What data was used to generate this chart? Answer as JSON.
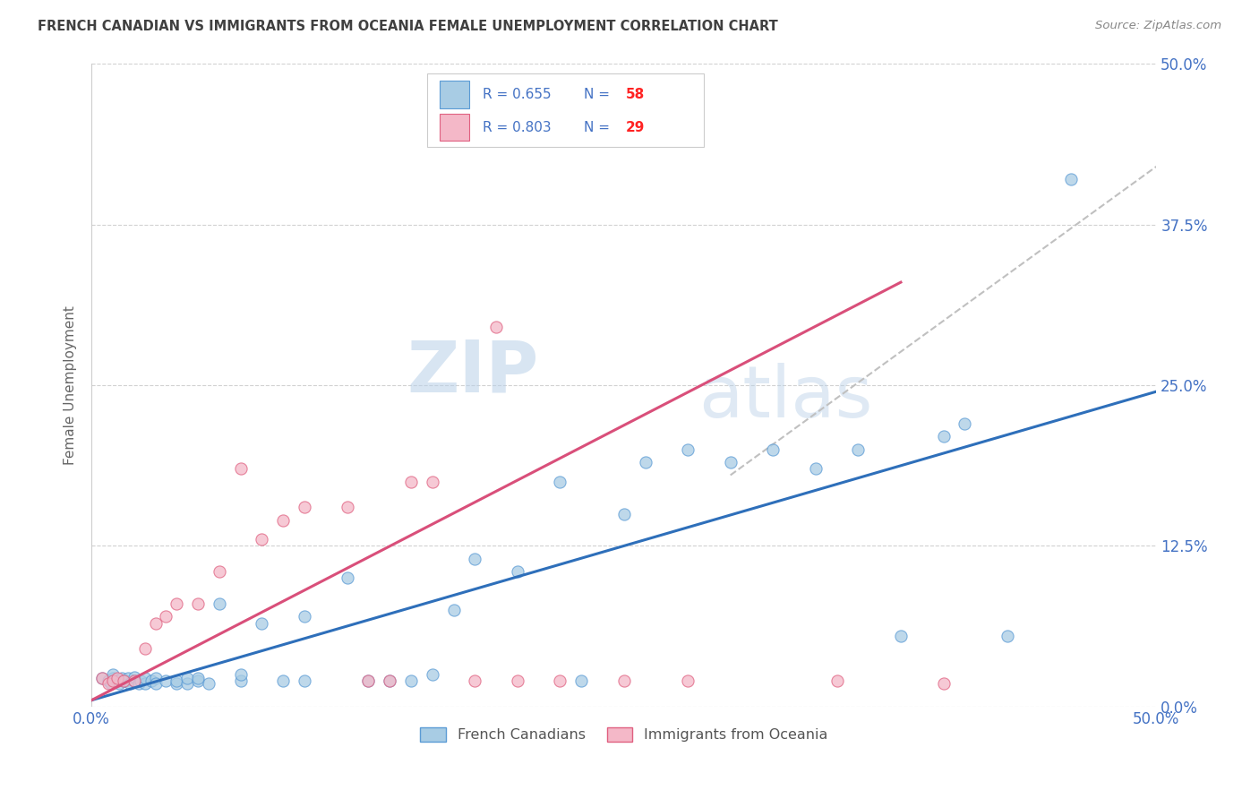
{
  "title": "FRENCH CANADIAN VS IMMIGRANTS FROM OCEANIA FEMALE UNEMPLOYMENT CORRELATION CHART",
  "source_text": "Source: ZipAtlas.com",
  "ylabel": "Female Unemployment",
  "watermark_zip": "ZIP",
  "watermark_atlas": "atlas",
  "blue_color": "#a8cce4",
  "blue_edge_color": "#5b9bd5",
  "pink_color": "#f4b8c8",
  "pink_edge_color": "#e06080",
  "blue_line_color": "#2e6fba",
  "pink_line_color": "#d94f7a",
  "dashed_line_color": "#c0c0c0",
  "title_color": "#404040",
  "axis_label_color": "#4472c4",
  "right_label_color": "#4472c4",
  "blue_scatter": [
    [
      0.005,
      0.022
    ],
    [
      0.008,
      0.02
    ],
    [
      0.009,
      0.018
    ],
    [
      0.01,
      0.022
    ],
    [
      0.01,
      0.025
    ],
    [
      0.012,
      0.02
    ],
    [
      0.013,
      0.018
    ],
    [
      0.014,
      0.022
    ],
    [
      0.015,
      0.02
    ],
    [
      0.016,
      0.02
    ],
    [
      0.017,
      0.022
    ],
    [
      0.018,
      0.018
    ],
    [
      0.02,
      0.02
    ],
    [
      0.02,
      0.023
    ],
    [
      0.022,
      0.018
    ],
    [
      0.023,
      0.02
    ],
    [
      0.025,
      0.018
    ],
    [
      0.025,
      0.022
    ],
    [
      0.028,
      0.02
    ],
    [
      0.03,
      0.022
    ],
    [
      0.03,
      0.018
    ],
    [
      0.035,
      0.02
    ],
    [
      0.04,
      0.018
    ],
    [
      0.04,
      0.02
    ],
    [
      0.045,
      0.018
    ],
    [
      0.045,
      0.022
    ],
    [
      0.05,
      0.02
    ],
    [
      0.05,
      0.022
    ],
    [
      0.055,
      0.018
    ],
    [
      0.06,
      0.08
    ],
    [
      0.07,
      0.02
    ],
    [
      0.07,
      0.025
    ],
    [
      0.08,
      0.065
    ],
    [
      0.09,
      0.02
    ],
    [
      0.1,
      0.02
    ],
    [
      0.1,
      0.07
    ],
    [
      0.12,
      0.1
    ],
    [
      0.13,
      0.02
    ],
    [
      0.14,
      0.02
    ],
    [
      0.15,
      0.02
    ],
    [
      0.16,
      0.025
    ],
    [
      0.17,
      0.075
    ],
    [
      0.18,
      0.115
    ],
    [
      0.2,
      0.105
    ],
    [
      0.22,
      0.175
    ],
    [
      0.23,
      0.02
    ],
    [
      0.25,
      0.15
    ],
    [
      0.26,
      0.19
    ],
    [
      0.28,
      0.2
    ],
    [
      0.3,
      0.19
    ],
    [
      0.32,
      0.2
    ],
    [
      0.34,
      0.185
    ],
    [
      0.36,
      0.2
    ],
    [
      0.38,
      0.055
    ],
    [
      0.4,
      0.21
    ],
    [
      0.41,
      0.22
    ],
    [
      0.43,
      0.055
    ],
    [
      0.46,
      0.41
    ]
  ],
  "pink_scatter": [
    [
      0.005,
      0.022
    ],
    [
      0.008,
      0.018
    ],
    [
      0.01,
      0.02
    ],
    [
      0.012,
      0.022
    ],
    [
      0.015,
      0.02
    ],
    [
      0.02,
      0.02
    ],
    [
      0.025,
      0.045
    ],
    [
      0.03,
      0.065
    ],
    [
      0.035,
      0.07
    ],
    [
      0.04,
      0.08
    ],
    [
      0.05,
      0.08
    ],
    [
      0.06,
      0.105
    ],
    [
      0.07,
      0.185
    ],
    [
      0.08,
      0.13
    ],
    [
      0.09,
      0.145
    ],
    [
      0.1,
      0.155
    ],
    [
      0.12,
      0.155
    ],
    [
      0.13,
      0.02
    ],
    [
      0.14,
      0.02
    ],
    [
      0.15,
      0.175
    ],
    [
      0.16,
      0.175
    ],
    [
      0.18,
      0.02
    ],
    [
      0.19,
      0.295
    ],
    [
      0.2,
      0.02
    ],
    [
      0.22,
      0.02
    ],
    [
      0.25,
      0.02
    ],
    [
      0.28,
      0.02
    ],
    [
      0.35,
      0.02
    ],
    [
      0.4,
      0.018
    ]
  ],
  "blue_regression": [
    0.0,
    0.005,
    0.5,
    0.245
  ],
  "pink_regression": [
    0.0,
    0.005,
    0.38,
    0.33
  ],
  "dashed_line": [
    0.3,
    0.18,
    0.5,
    0.42
  ],
  "xlim": [
    0.0,
    0.5
  ],
  "ylim": [
    0.0,
    0.5
  ],
  "yticks": [
    0.0,
    0.125,
    0.25,
    0.375,
    0.5
  ],
  "ytick_labels_right": [
    "0.0%",
    "12.5%",
    "25.0%",
    "37.5%",
    "50.0%"
  ],
  "xticks": [
    0.0,
    0.5
  ],
  "xtick_labels": [
    "0.0%",
    "50.0%"
  ],
  "figsize": [
    14.06,
    8.92
  ]
}
